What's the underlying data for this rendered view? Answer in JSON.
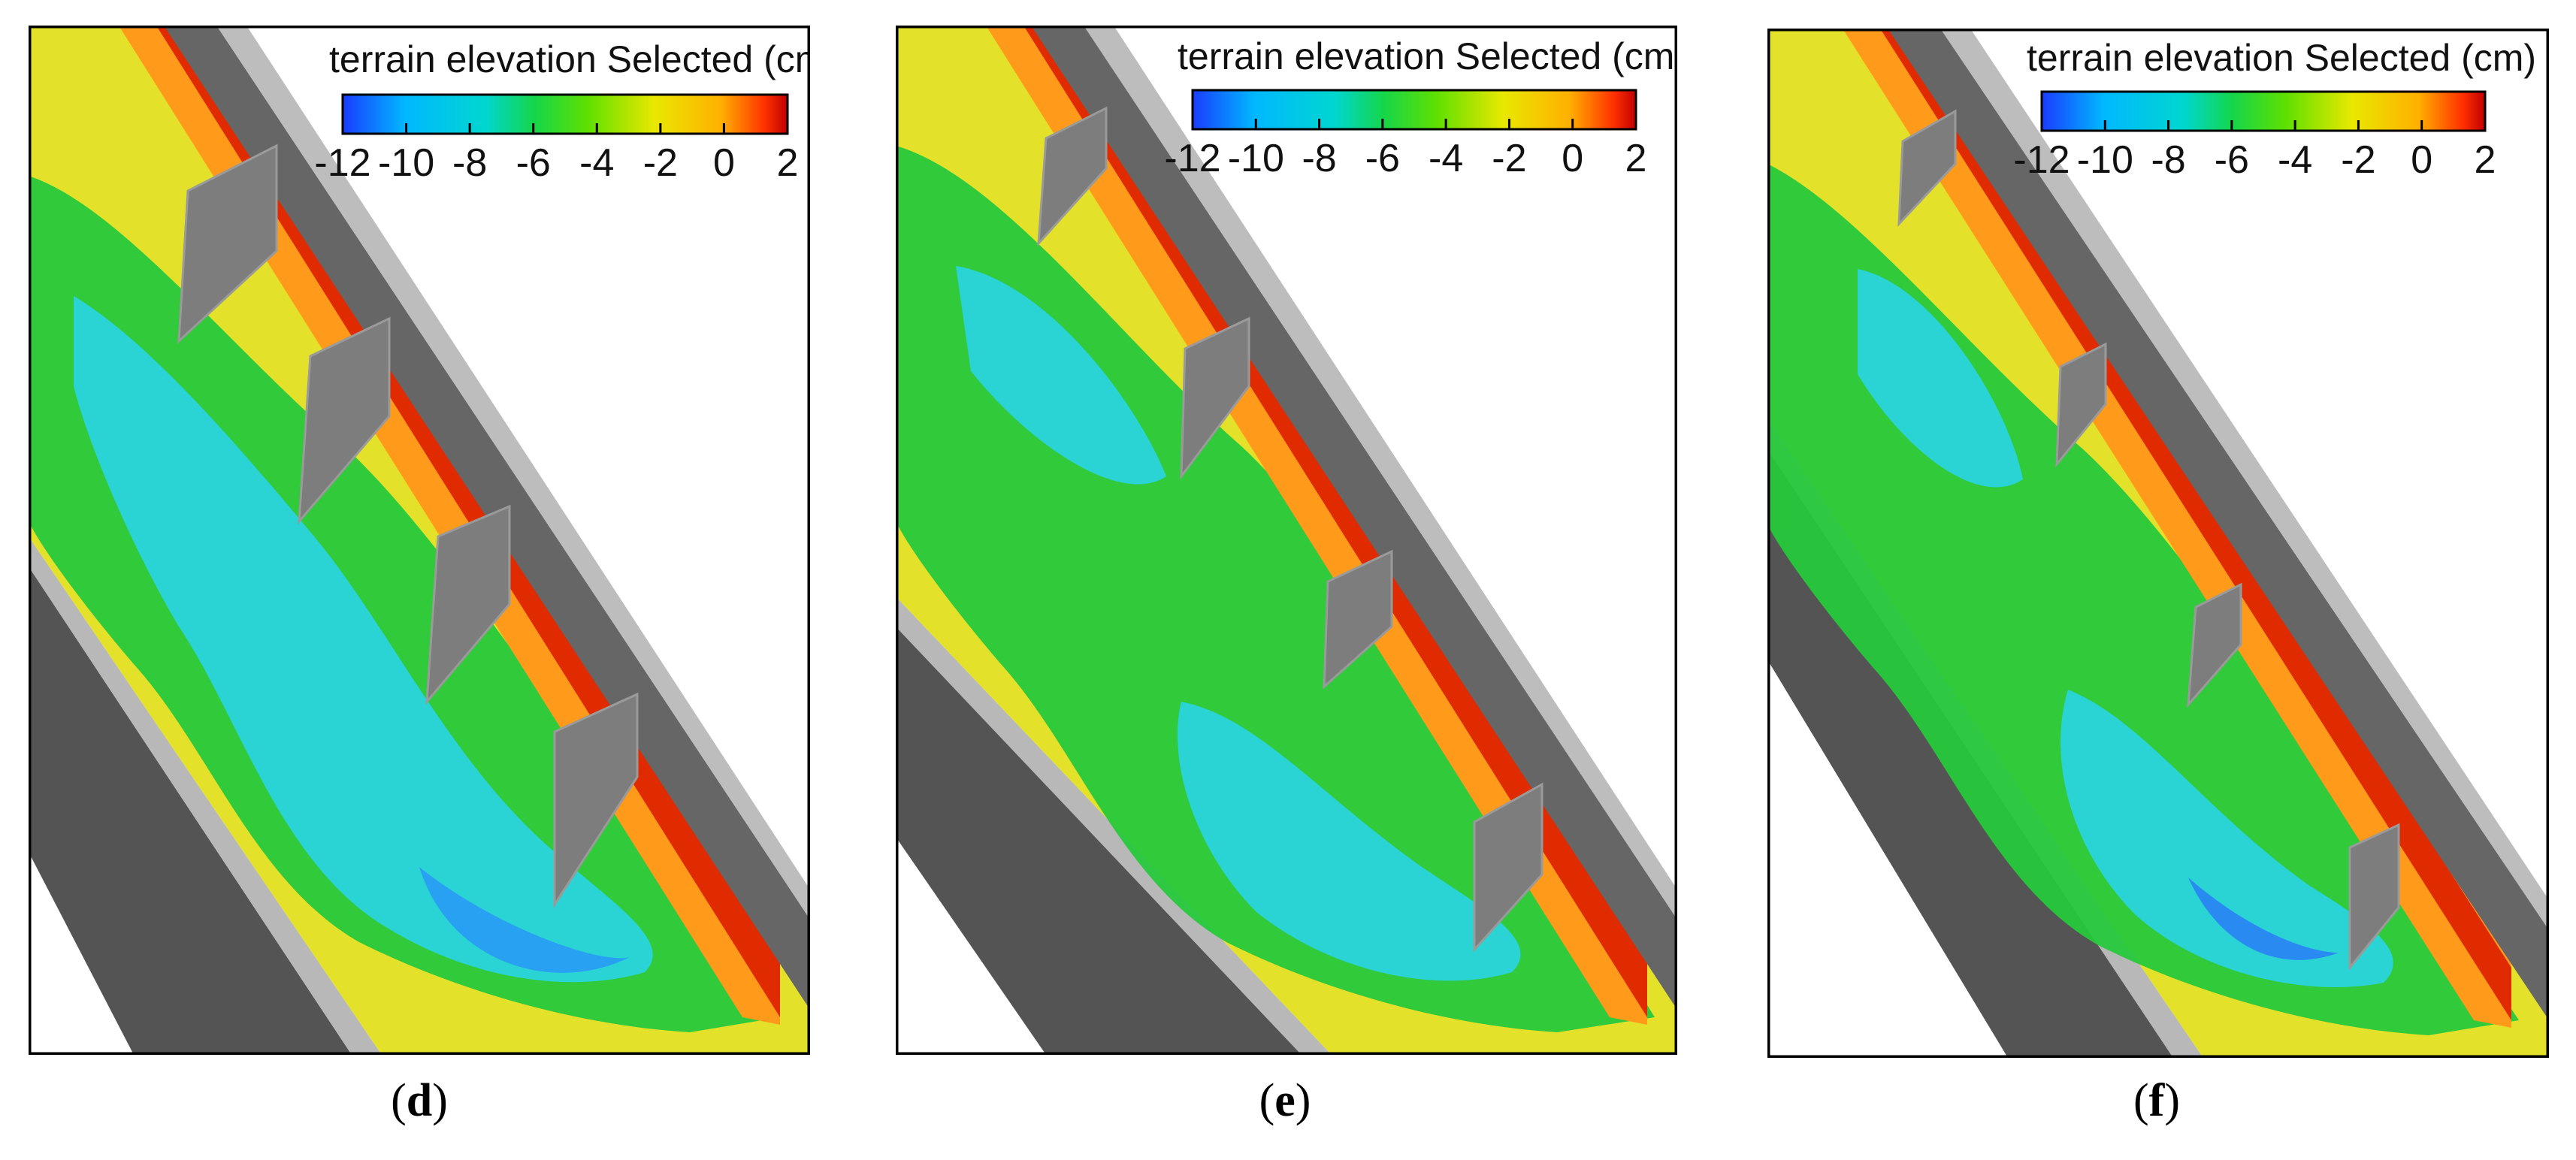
{
  "panels": [
    {
      "caption_open": "(",
      "caption_letter": "d",
      "caption_close": ")",
      "baffle_count": 4
    },
    {
      "caption_open": "(",
      "caption_letter": "e",
      "caption_close": ")",
      "baffle_count": 4
    },
    {
      "caption_open": "(",
      "caption_letter": "f",
      "caption_close": ")",
      "baffle_count": 4
    }
  ],
  "colorbar": {
    "title": "terrain elevation Selected (cm)",
    "ticks": [
      "-12",
      "-10",
      "-8",
      "-6",
      "-4",
      "-2",
      "0",
      "2"
    ],
    "range": [
      -12,
      2
    ],
    "colors": [
      "#1a3cff",
      "#00b8ff",
      "#00d6d0",
      "#14d64a",
      "#5ee000",
      "#e8e800",
      "#ffb000",
      "#ff3000",
      "#c00000"
    ]
  },
  "colors": {
    "wall": "#7a7a7a",
    "wall_dark": "#545454",
    "frame": "#000000"
  }
}
